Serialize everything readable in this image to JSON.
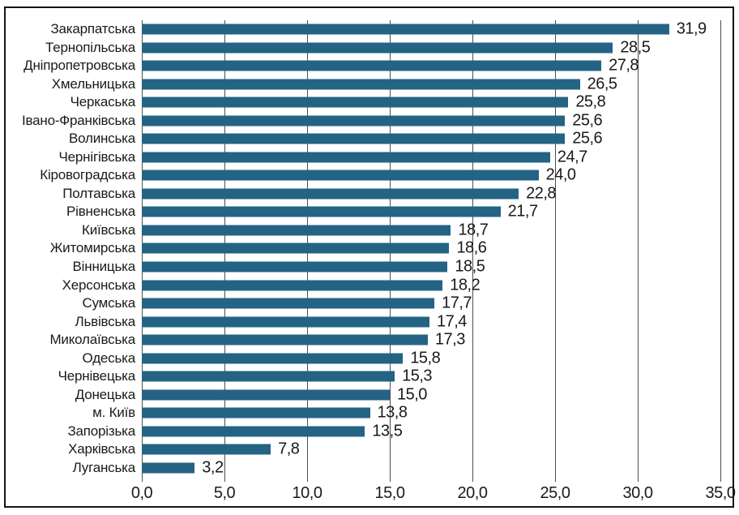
{
  "chart_data": {
    "type": "bar",
    "orientation": "horizontal",
    "title": "",
    "xlabel": "",
    "ylabel": "",
    "grid": true,
    "legend_position": "none",
    "decimal_separator": ",",
    "categories": [
      "Закарпатська",
      "Тернопільська",
      "Дніпропетровська",
      "Хмельницька",
      "Черкаська",
      "Івано-Франківська",
      "Волинська",
      "Чернігівська",
      "Кіровоградська",
      "Полтавська",
      "Рівненська",
      "Київська",
      "Житомирська",
      "Вінницька",
      "Херсонська",
      "Сумська",
      "Львівська",
      "Миколаївська",
      "Одеська",
      "Чернівецька",
      "Донецька",
      "м. Київ",
      "Запорізька",
      "Харківська",
      "Луганська"
    ],
    "values": [
      31.9,
      28.5,
      27.8,
      26.5,
      25.8,
      25.6,
      25.6,
      24.7,
      24.0,
      22.8,
      21.7,
      18.7,
      18.6,
      18.5,
      18.2,
      17.7,
      17.4,
      17.3,
      15.8,
      15.3,
      15.0,
      13.8,
      13.5,
      7.8,
      3.2
    ],
    "value_labels": [
      "31,9",
      "28,5",
      "27,8",
      "26,5",
      "25,8",
      "25,6",
      "25,6",
      "24,7",
      "24,0",
      "22,8",
      "21,7",
      "18,7",
      "18,6",
      "18,5",
      "18,2",
      "17,7",
      "17,4",
      "17,3",
      "15,8",
      "15,3",
      "15,0",
      "13,8",
      "13,5",
      "7,8",
      "3,2"
    ],
    "xlim": [
      0,
      35
    ],
    "x_ticks": [
      0,
      5,
      10,
      15,
      20,
      25,
      30,
      35
    ],
    "x_tick_labels": [
      "0,0",
      "5,0",
      "10,0",
      "15,0",
      "20,0",
      "25,0",
      "30,0",
      "35,0"
    ],
    "bar_color": "#246384",
    "gridline_color": "#4d4d4d",
    "frame_border_color": "#141414",
    "text_color": "#1a1a1a"
  }
}
